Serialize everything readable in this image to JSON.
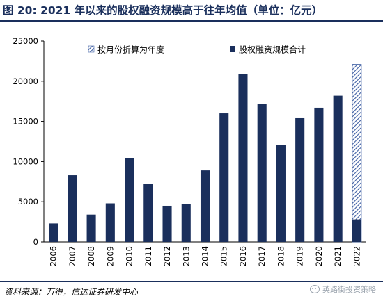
{
  "header": {
    "title": "图 20: 2021 年以来的股权融资规模高于往年均值（单位：亿元）"
  },
  "footer": {
    "source": "资料来源：万得，信达证券研发中心",
    "watermark": "英路街投资策略"
  },
  "colors": {
    "bar": "#1a2f5c",
    "hatch": "#3f5fa3",
    "axis": "#000000"
  },
  "chart_data": {
    "type": "bar",
    "title": "",
    "xlabel": "",
    "ylabel": "",
    "ylim": [
      0,
      25000
    ],
    "yticks": [
      0,
      5000,
      10000,
      15000,
      20000,
      25000
    ],
    "grid": false,
    "legend_position": "top",
    "categories": [
      "2006",
      "2007",
      "2008",
      "2009",
      "2010",
      "2011",
      "2012",
      "2013",
      "2014",
      "2015",
      "2016",
      "2017",
      "2018",
      "2019",
      "2020",
      "2021",
      "2022"
    ],
    "series": [
      {
        "name": "股权融资规模合计",
        "style": "solid",
        "values": [
          2300,
          8300,
          3400,
          4800,
          10400,
          7200,
          4500,
          4700,
          8900,
          16000,
          20900,
          17200,
          12100,
          15400,
          16700,
          18200,
          2800
        ]
      },
      {
        "name": "按月份折算为年度",
        "style": "hatched",
        "values": [
          null,
          null,
          null,
          null,
          null,
          null,
          null,
          null,
          null,
          null,
          null,
          null,
          null,
          null,
          null,
          null,
          22100
        ]
      }
    ]
  }
}
